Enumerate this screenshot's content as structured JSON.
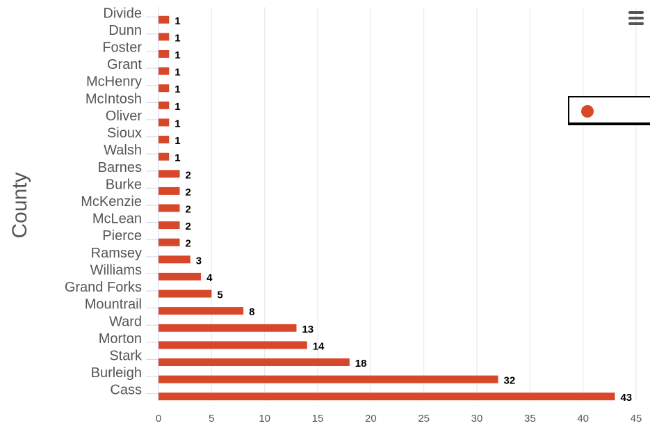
{
  "chart_data": {
    "type": "bar",
    "orientation": "horizontal",
    "title": "",
    "xlabel": "",
    "ylabel": "County",
    "categories": [
      "Divide",
      "Dunn",
      "Foster",
      "Grant",
      "McHenry",
      "McIntosh",
      "Oliver",
      "Sioux",
      "Walsh",
      "Barnes",
      "Burke",
      "McKenzie",
      "McLean",
      "Pierce",
      "Ramsey",
      "Williams",
      "Grand Forks",
      "Mountrail",
      "Ward",
      "Morton",
      "Stark",
      "Burleigh",
      "Cass"
    ],
    "series": [
      {
        "values": [
          1,
          1,
          1,
          1,
          1,
          1,
          1,
          1,
          1,
          2,
          2,
          2,
          2,
          2,
          3,
          4,
          5,
          8,
          13,
          14,
          18,
          32,
          43
        ],
        "color": "#d7472a"
      }
    ],
    "xlim": [
      0,
      45
    ],
    "xticks": [
      0,
      5,
      10,
      15,
      20,
      25,
      30,
      35,
      40,
      45
    ],
    "grid": "vertical",
    "data_labels": true,
    "legend": {
      "position": "right",
      "marker": "circle"
    }
  },
  "colors": {
    "bar": "#d7472a",
    "grid": "#e6e6e6",
    "axis": "#ccd6eb",
    "text": "#555555"
  },
  "toolbar": {
    "menu_icon": "hamburger-menu-icon"
  }
}
